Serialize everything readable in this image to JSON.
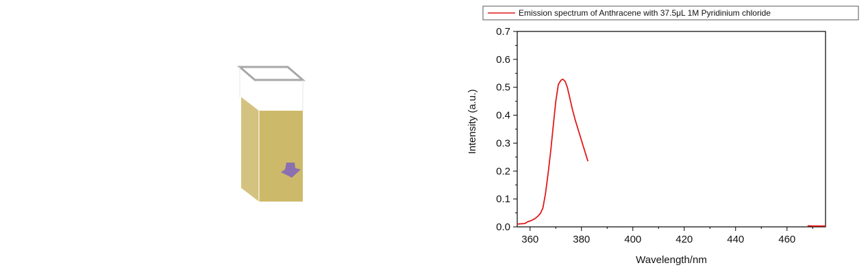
{
  "figure": {
    "cuvette": {
      "icon": "cuvette-icon",
      "liquid_color": "#cdb96a",
      "marker_color": "#8b6fb0",
      "marker_icon": "arrow-icon"
    }
  },
  "chart_data": {
    "type": "line",
    "title": "",
    "xlabel": "Wavelength/nm",
    "ylabel": "Intensity (a.u.)",
    "xlim": [
      355,
      475
    ],
    "ylim": [
      0.0,
      0.7
    ],
    "x_ticks": [
      360,
      380,
      400,
      420,
      440,
      460
    ],
    "x_tick_labels": [
      "360",
      "380",
      "400",
      "420",
      "440",
      "460"
    ],
    "y_ticks": [
      0.0,
      0.1,
      0.2,
      0.3,
      0.4,
      0.5,
      0.6,
      0.7
    ],
    "y_tick_labels": [
      "0.0",
      "0.1",
      "0.2",
      "0.3",
      "0.4",
      "0.5",
      "0.6",
      "0.7"
    ],
    "grid": false,
    "legend_position": "top",
    "series": [
      {
        "name": "Emission spectrum of Anthracene with 37.5μL 1M Pyridinium chloride",
        "color": "#e01818",
        "segments": [
          {
            "x": [
              355,
              358,
              359,
              360,
              361,
              362,
              363,
              364,
              365,
              366,
              367,
              368,
              369,
              370,
              371,
              372,
              372.7,
              373,
              373.7,
              374.5,
              375.5,
              376.5,
              377.5,
              379,
              380.5,
              382,
              382.5
            ],
            "y": [
              0.01,
              0.012,
              0.018,
              0.021,
              0.025,
              0.03,
              0.038,
              0.048,
              0.068,
              0.12,
              0.19,
              0.27,
              0.36,
              0.45,
              0.51,
              0.525,
              0.529,
              0.527,
              0.52,
              0.5,
              0.46,
              0.42,
              0.385,
              0.34,
              0.295,
              0.25,
              0.235
            ]
          },
          {
            "x": [
              468,
              470,
              472,
              475
            ],
            "y": [
              0.004,
              0.003,
              0.003,
              0.003
            ]
          }
        ]
      }
    ]
  }
}
